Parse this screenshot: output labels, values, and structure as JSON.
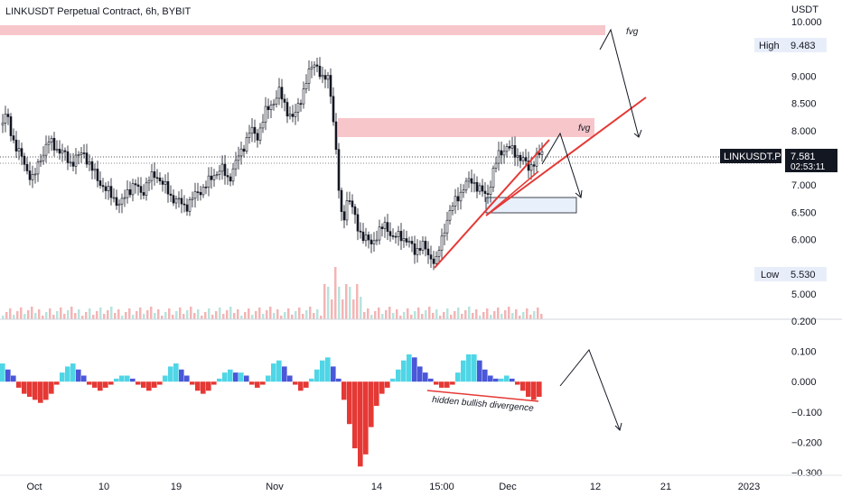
{
  "chart_data": {
    "type": "candlestick",
    "title": "LINKUSDT Perpetual Contract, 6h, BYBIT",
    "currency": "USDT",
    "price_axis": {
      "ticks": [
        "10.000",
        "9.483",
        "9.000",
        "8.500",
        "8.000",
        "7.581",
        "7.000",
        "6.500",
        "6.000",
        "5.530",
        "5.000"
      ],
      "tick_values": [
        10.0,
        9.0,
        8.5,
        8.0,
        7.0,
        6.5,
        6.0,
        5.0
      ],
      "ylim": [
        4.8,
        10.1
      ]
    },
    "high_marker": {
      "label": "High",
      "value": "9.483"
    },
    "low_marker": {
      "label": "Low",
      "value": "5.530"
    },
    "last_price": {
      "symbol": "LINKUSDT.P",
      "value": "7.581",
      "countdown": "02:53:11"
    },
    "time_axis": {
      "labels": [
        "Oct",
        "10",
        "19",
        "Nov",
        "14",
        "15:00",
        "Dec",
        "12",
        "21",
        "2023"
      ]
    },
    "price_path": [
      [
        0,
        8.1
      ],
      [
        6,
        8.3
      ],
      [
        12,
        7.9
      ],
      [
        20,
        7.6
      ],
      [
        28,
        7.3
      ],
      [
        36,
        7.1
      ],
      [
        44,
        7.5
      ],
      [
        52,
        7.8
      ],
      [
        60,
        7.7
      ],
      [
        68,
        7.6
      ],
      [
        76,
        7.4
      ],
      [
        84,
        7.5
      ],
      [
        92,
        7.6
      ],
      [
        100,
        7.3
      ],
      [
        108,
        7.1
      ],
      [
        116,
        6.9
      ],
      [
        124,
        6.8
      ],
      [
        132,
        6.6
      ],
      [
        140,
        6.9
      ],
      [
        148,
        7.0
      ],
      [
        156,
        6.85
      ],
      [
        164,
        7.1
      ],
      [
        172,
        7.2
      ],
      [
        180,
        7.0
      ],
      [
        188,
        6.8
      ],
      [
        196,
        6.7
      ],
      [
        204,
        6.6
      ],
      [
        212,
        6.75
      ],
      [
        220,
        6.9
      ],
      [
        228,
        7.0
      ],
      [
        236,
        7.2
      ],
      [
        244,
        7.3
      ],
      [
        252,
        7.1
      ],
      [
        260,
        7.4
      ],
      [
        268,
        7.7
      ],
      [
        276,
        8.0
      ],
      [
        284,
        7.9
      ],
      [
        292,
        8.3
      ],
      [
        300,
        8.5
      ],
      [
        308,
        8.7
      ],
      [
        316,
        8.4
      ],
      [
        324,
        8.2
      ],
      [
        332,
        8.6
      ],
      [
        340,
        9.0
      ],
      [
        348,
        9.3
      ],
      [
        356,
        8.9
      ],
      [
        362,
        9.0
      ],
      [
        366,
        8.6
      ],
      [
        370,
        7.8
      ],
      [
        374,
        6.9
      ],
      [
        378,
        6.3
      ],
      [
        384,
        6.8
      ],
      [
        390,
        6.5
      ],
      [
        396,
        6.2
      ],
      [
        402,
        6.0
      ],
      [
        410,
        5.95
      ],
      [
        418,
        6.1
      ],
      [
        426,
        6.3
      ],
      [
        434,
        6.0
      ],
      [
        442,
        6.1
      ],
      [
        450,
        5.95
      ],
      [
        458,
        5.8
      ],
      [
        466,
        5.9
      ],
      [
        474,
        5.7
      ],
      [
        482,
        5.6
      ],
      [
        488,
        6.0
      ],
      [
        494,
        6.4
      ],
      [
        500,
        6.6
      ],
      [
        506,
        6.8
      ],
      [
        514,
        7.0
      ],
      [
        522,
        7.1
      ],
      [
        530,
        6.9
      ],
      [
        538,
        6.8
      ],
      [
        546,
        7.3
      ],
      [
        552,
        7.6
      ],
      [
        560,
        7.7
      ],
      [
        568,
        7.6
      ],
      [
        576,
        7.5
      ],
      [
        584,
        7.3
      ],
      [
        592,
        7.5
      ],
      [
        600,
        7.58
      ]
    ],
    "oscillator": {
      "ylim": [
        -0.3,
        0.2
      ],
      "ticks": [
        "0.200",
        "0.100",
        "0.000",
        "−0.100",
        "−0.200",
        "−0.300"
      ],
      "tick_values": [
        0.2,
        0.1,
        0.0,
        -0.1,
        -0.2,
        -0.3
      ],
      "bars": [
        0.06,
        0.04,
        0.02,
        -0.02,
        -0.04,
        -0.05,
        -0.06,
        -0.07,
        -0.06,
        -0.04,
        -0.01,
        0.03,
        0.05,
        0.06,
        0.04,
        0.02,
        -0.01,
        -0.02,
        -0.03,
        -0.02,
        -0.01,
        0.01,
        0.02,
        0.02,
        0.01,
        -0.01,
        -0.02,
        -0.03,
        -0.02,
        -0.01,
        0.02,
        0.05,
        0.06,
        0.04,
        0.02,
        -0.01,
        -0.03,
        -0.04,
        -0.03,
        -0.01,
        0.01,
        0.03,
        0.04,
        0.03,
        0.03,
        0.02,
        -0.01,
        -0.02,
        -0.01,
        0.02,
        0.06,
        0.07,
        0.05,
        0.02,
        -0.01,
        -0.03,
        -0.02,
        0.01,
        0.04,
        0.07,
        0.08,
        0.05,
        0.01,
        -0.06,
        -0.14,
        -0.22,
        -0.28,
        -0.24,
        -0.15,
        -0.08,
        -0.04,
        -0.02,
        0.01,
        0.04,
        0.07,
        0.09,
        0.08,
        0.05,
        0.03,
        0.01,
        -0.01,
        -0.02,
        -0.02,
        -0.01,
        0.03,
        0.07,
        0.09,
        0.09,
        0.07,
        0.04,
        0.02,
        0.01,
        0.01,
        0.02,
        0.01,
        -0.01,
        -0.03,
        -0.05,
        -0.06,
        -0.05
      ]
    },
    "annotations": {
      "fvg_top": "fvg",
      "fvg_mid": "fvg",
      "divergence": "hidden bullish divergence"
    },
    "colors": {
      "up": "#26a69a",
      "down": "#131722",
      "fvg": "#f7c6cb",
      "box": "#e8f0fb",
      "trendline": "#e53935",
      "osc_pos": "#4fd6e6",
      "osc_pos_dark": "#4a57d8",
      "osc_neg": "#e53935",
      "volume": "#f3b5b5"
    }
  }
}
